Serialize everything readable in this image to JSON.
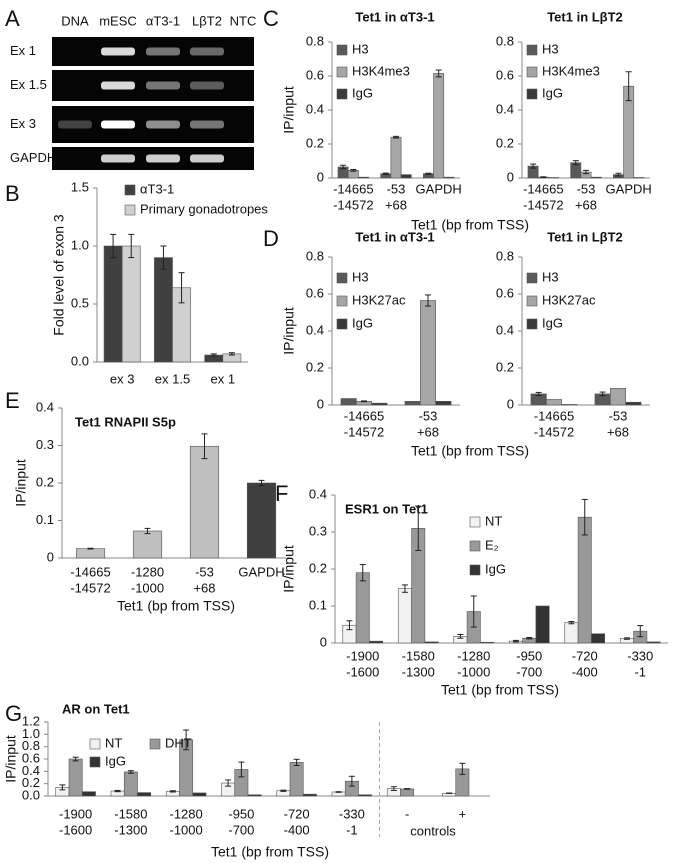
{
  "gel": {
    "panel_label": "A",
    "lanes": [
      "DNA",
      "mESC",
      "αT3-1",
      "LβT2",
      "NTC"
    ],
    "rows": [
      "Ex 1",
      "Ex 1.5",
      "Ex 3",
      "GAPDH"
    ]
  },
  "chart_data": [
    {
      "type": "bar",
      "panel_label": "B",
      "ylabel": "Fold level of exon 3",
      "categories": [
        [
          "ex 3"
        ],
        [
          "ex 1.5"
        ],
        [
          "ex 1"
        ]
      ],
      "series": [
        {
          "name": "αT3-1",
          "color": "#404040",
          "values": [
            1.0,
            0.9,
            0.06
          ],
          "errors": [
            0.1,
            0.1,
            0.01
          ]
        },
        {
          "name": "Primary gonadotropes",
          "color": "#d0d0d0",
          "values": [
            1.0,
            0.64,
            0.07
          ],
          "errors": [
            0.1,
            0.13,
            0.01
          ]
        }
      ],
      "ylim": [
        0,
        1.5
      ],
      "yticks": [
        {
          "value": 0,
          "label": "0.0"
        },
        0.5,
        {
          "value": 1,
          "label": "1.0"
        },
        1.5
      ],
      "legend": "top-left"
    },
    {
      "type": "bar",
      "panel_label": "C",
      "title": "Tet1 in αT3-1",
      "ylabel": "IP/input",
      "xlabel": "Tet1 (bp from TSS)",
      "categories": [
        [
          "-14665",
          "-14572"
        ],
        [
          "-53",
          "+68"
        ],
        [
          "GAPDH"
        ]
      ],
      "series": [
        {
          "name": "H3",
          "color": "#595959",
          "values": [
            0.065,
            0.025,
            0.025
          ],
          "errors": [
            0.01,
            0.004,
            0.003
          ]
        },
        {
          "name": "H3K4me3",
          "color": "#a6a6a6",
          "values": [
            0.045,
            0.24,
            0.615
          ],
          "errors": [
            0.005,
            0.005,
            0.02
          ]
        },
        {
          "name": "IgG",
          "color": "#3a3a3a",
          "values": [
            0.005,
            0.02,
            0.005
          ]
        }
      ],
      "ylim": [
        0,
        0.8
      ],
      "yticks": [
        0,
        0.2,
        0.4,
        0.6,
        0.8
      ],
      "legend": "top-left"
    },
    {
      "type": "bar",
      "title": "Tet1 in LβT2",
      "categories": [
        [
          "-14665",
          "-14572"
        ],
        [
          "-53",
          "+68"
        ],
        [
          "GAPDH"
        ]
      ],
      "series": [
        {
          "name": "H3",
          "color": "#595959",
          "values": [
            0.07,
            0.09,
            0.02
          ],
          "errors": [
            0.012,
            0.012,
            0.008
          ]
        },
        {
          "name": "H3K4me3",
          "color": "#a6a6a6",
          "values": [
            0.005,
            0.035,
            0.54
          ],
          "errors": [
            0.002,
            0.01,
            0.085
          ]
        },
        {
          "name": "IgG",
          "color": "#3a3a3a",
          "values": [
            0.003,
            0.005,
            0.003
          ]
        }
      ],
      "ylim": [
        0,
        0.8
      ],
      "yticks": [
        0,
        0.2,
        0.4,
        0.6,
        0.8
      ],
      "legend": "top-left"
    },
    {
      "type": "bar",
      "panel_label": "D",
      "title": "Tet1 in αT3-1",
      "ylabel": "IP/input",
      "xlabel": "Tet1 (bp from TSS)",
      "categories": [
        [
          "-14665",
          "-14572"
        ],
        [
          "-53",
          "+68"
        ]
      ],
      "series": [
        {
          "name": "H3",
          "color": "#595959",
          "values": [
            0.035,
            0.02
          ]
        },
        {
          "name": "H3K27ac",
          "color": "#a6a6a6",
          "values": [
            0.02,
            0.565
          ],
          "errors": [
            0.002,
            0.03
          ]
        },
        {
          "name": "IgG",
          "color": "#3a3a3a",
          "values": [
            0.01,
            0.02
          ]
        }
      ],
      "ylim": [
        0,
        0.8
      ],
      "yticks": [
        0,
        0.2,
        0.4,
        0.6,
        0.8
      ],
      "legend": "top-left"
    },
    {
      "type": "bar",
      "title": "Tet1 in LβT2",
      "categories": [
        [
          "-14665",
          "-14572"
        ],
        [
          "-53",
          "+68"
        ]
      ],
      "series": [
        {
          "name": "H3",
          "color": "#595959",
          "values": [
            0.06,
            0.06
          ],
          "errors": [
            0.008,
            0.01
          ]
        },
        {
          "name": "H3K27ac",
          "color": "#a6a6a6",
          "values": [
            0.03,
            0.09
          ]
        },
        {
          "name": "IgG",
          "color": "#3a3a3a",
          "values": [
            0.003,
            0.015
          ]
        }
      ],
      "ylim": [
        0,
        0.8
      ],
      "yticks": [
        0,
        0.2,
        0.4,
        0.6,
        0.8
      ],
      "legend": "top-left"
    },
    {
      "type": "bar",
      "panel_label": "E",
      "title": "Tet1 RNAPII S5p",
      "ylabel": "IP/input",
      "xlabel": "Tet1 (bp from TSS)",
      "categories": [
        [
          "-14665",
          "-14572"
        ],
        [
          "-1280",
          "-1000"
        ],
        [
          "-53",
          "+68"
        ],
        [
          "GAPDH"
        ]
      ],
      "values": [
        0.025,
        0.072,
        0.298,
        0.2
      ],
      "errors": [
        0.001,
        0.007,
        0.033,
        0.007
      ],
      "colors": [
        "#bfbfbf",
        "#bfbfbf",
        "#bfbfbf",
        "#404040"
      ],
      "ylim": [
        0,
        0.4
      ],
      "yticks": [
        0,
        0.1,
        0.2,
        0.3,
        0.4
      ]
    },
    {
      "type": "bar",
      "panel_label": "F",
      "title": "ESR1 on Tet1",
      "ylabel": "IP/input",
      "xlabel": "Tet1 (bp from TSS)",
      "categories": [
        [
          "-1900",
          "-1600"
        ],
        [
          "-1580",
          "-1300"
        ],
        [
          "-1280",
          "-1000"
        ],
        [
          "-950",
          "-700"
        ],
        [
          "-720",
          "-400"
        ],
        [
          "-330",
          "-1"
        ]
      ],
      "series": [
        {
          "name": "NT",
          "color": "#f2f2f2",
          "values": [
            0.048,
            0.147,
            0.018,
            0.005,
            0.055,
            0.012
          ],
          "errors": [
            0.012,
            0.01,
            0.005,
            0.002,
            0.003,
            0.002
          ]
        },
        {
          "name": "E₂",
          "color": "#999999",
          "values": [
            0.19,
            0.31,
            0.085,
            0.013,
            0.34,
            0.032
          ],
          "errors": [
            0.022,
            0.06,
            0.042,
            0.002,
            0.048,
            0.015
          ]
        },
        {
          "name": "IgG",
          "color": "#333333",
          "values": [
            0.005,
            0.003,
            0.002,
            0.1,
            0.025,
            0.003
          ]
        }
      ],
      "ylim": [
        0,
        0.4
      ],
      "yticks": [
        0,
        0.1,
        0.2,
        0.3,
        0.4
      ],
      "legend": "top-right"
    },
    {
      "type": "bar",
      "panel_label": "G",
      "title": "AR on Tet1",
      "ylabel": "IP/input",
      "xlabel": "Tet1 (bp from TSS)",
      "annotation": "controls",
      "categories": [
        [
          "-1900",
          "-1600"
        ],
        [
          "-1580",
          "-1300"
        ],
        [
          "-1280",
          "-1000"
        ],
        [
          "-950",
          "-700"
        ],
        [
          "-720",
          "-400"
        ],
        [
          "-330",
          "-1"
        ],
        [
          "-"
        ],
        [
          "+"
        ]
      ],
      "series": [
        {
          "name": "NT",
          "color": "#f2f2f2",
          "values": [
            0.14,
            0.08,
            0.075,
            0.21,
            0.085,
            0.065,
            0.12,
            0.045
          ],
          "errors": [
            0.04,
            0.01,
            0.01,
            0.05,
            0.01,
            0.005,
            0.03,
            0.003
          ]
        },
        {
          "name": "DHT",
          "color": "#999999",
          "values": [
            0.6,
            0.39,
            0.91,
            0.43,
            0.545,
            0.24,
            0.115,
            0.44
          ],
          "errors": [
            0.03,
            0.02,
            0.16,
            0.12,
            0.05,
            0.08,
            0.005,
            0.09
          ]
        },
        {
          "name": "IgG",
          "color": "#333333",
          "values": [
            0.07,
            0.055,
            0.05,
            0.02,
            0.03,
            0.02,
            null,
            null
          ]
        }
      ],
      "ylim": [
        0,
        1.2
      ],
      "yticks": [
        {
          "value": 0,
          "label": "0.0"
        },
        0.2,
        0.4,
        0.6,
        0.8,
        {
          "value": 1,
          "label": "1.0"
        },
        1.2
      ],
      "legend": "top-left"
    }
  ]
}
